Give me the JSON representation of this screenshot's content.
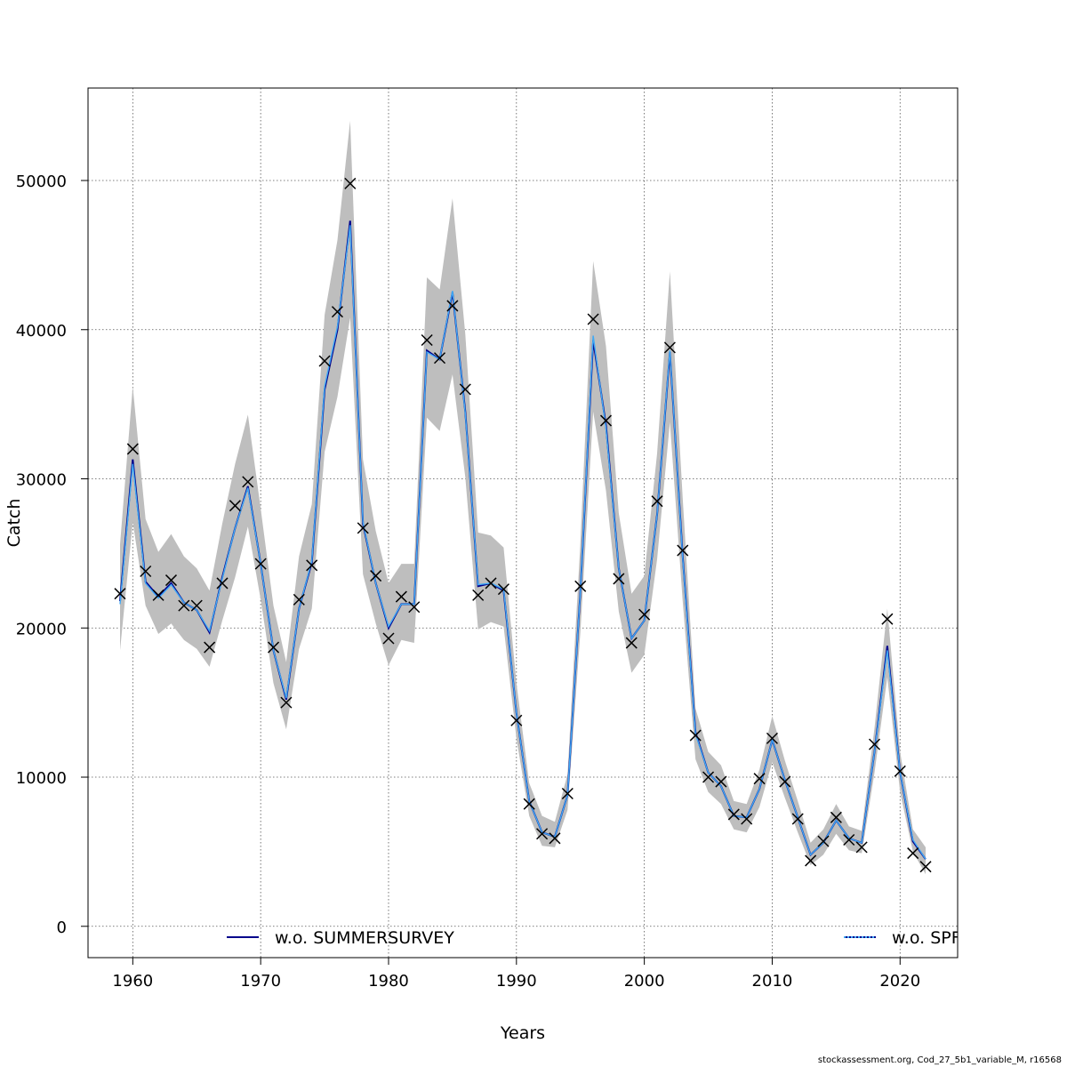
{
  "chart_data": {
    "type": "line",
    "xlabel": "Years",
    "ylabel": "Catch",
    "xlim": [
      1956.5,
      2024.5
    ],
    "ylim": [
      -2100,
      56200
    ],
    "x_ticks": [
      1960,
      1970,
      1980,
      1990,
      2000,
      2010,
      2020
    ],
    "y_ticks": [
      0,
      10000,
      20000,
      30000,
      40000,
      50000
    ],
    "x_tick_labels": [
      "1960",
      "1970",
      "1980",
      "1990",
      "2000",
      "2010",
      "2020"
    ],
    "y_tick_labels": [
      "0",
      "10000",
      "20000",
      "30000",
      "40000",
      "50000"
    ],
    "grid": true,
    "x": [
      1959,
      1960,
      1961,
      1962,
      1963,
      1964,
      1965,
      1966,
      1967,
      1968,
      1969,
      1970,
      1971,
      1972,
      1973,
      1974,
      1975,
      1976,
      1977,
      1978,
      1979,
      1980,
      1981,
      1982,
      1983,
      1984,
      1985,
      1986,
      1987,
      1988,
      1989,
      1990,
      1991,
      1992,
      1993,
      1994,
      1995,
      1996,
      1997,
      1998,
      1999,
      2000,
      2001,
      2002,
      2003,
      2004,
      2005,
      2006,
      2007,
      2008,
      2009,
      2010,
      2011,
      2012,
      2013,
      2014,
      2015,
      2016,
      2017,
      2018,
      2019,
      2020,
      2021,
      2022
    ],
    "series": [
      {
        "name": "w.o. SUMMERSURVEY",
        "color": "#00008b",
        "values": [
          21800,
          31300,
          23100,
          22100,
          23000,
          21700,
          21200,
          19700,
          23400,
          26700,
          29500,
          24300,
          18500,
          15200,
          21300,
          24400,
          36000,
          40000,
          47300,
          27000,
          23000,
          20000,
          21600,
          21600,
          38600,
          38000,
          42500,
          34500,
          22800,
          23000,
          22500,
          14300,
          8400,
          6300,
          6000,
          8800,
          22400,
          39300,
          33600,
          24000,
          19300,
          20500,
          27600,
          38500,
          24800,
          13000,
          10300,
          9400,
          7400,
          7300,
          9200,
          12500,
          9800,
          7300,
          4800,
          5600,
          7100,
          5900,
          5600,
          11700,
          18800,
          10300,
          5700,
          4500
        ],
        "upper": [
          25600,
          36200,
          27300,
          25100,
          26300,
          24800,
          24000,
          22500,
          27000,
          31000,
          34300,
          28000,
          21500,
          17700,
          24800,
          28300,
          41000,
          46000,
          54000,
          31300,
          26500,
          23000,
          24300,
          24300,
          43500,
          42700,
          48800,
          39700,
          26400,
          26200,
          25400,
          16300,
          9600,
          7400,
          7000,
          10200,
          25700,
          44600,
          38900,
          27700,
          22300,
          23500,
          31700,
          43900,
          28700,
          14600,
          11700,
          10800,
          8400,
          8200,
          10500,
          14100,
          11100,
          8400,
          5600,
          6500,
          8200,
          6700,
          6400,
          13300,
          21300,
          11700,
          6500,
          5300
        ],
        "lower": [
          18500,
          27100,
          21500,
          19600,
          20300,
          19200,
          18600,
          17400,
          20500,
          23400,
          26800,
          21900,
          16300,
          13200,
          18600,
          21300,
          31800,
          35500,
          40800,
          23600,
          20300,
          17500,
          19200,
          19000,
          34100,
          33200,
          37000,
          30100,
          19900,
          20400,
          20100,
          12600,
          7400,
          5400,
          5300,
          7800,
          19700,
          34500,
          29200,
          21100,
          17000,
          18200,
          24600,
          33800,
          21800,
          11200,
          9000,
          8200,
          6500,
          6300,
          8000,
          11000,
          8600,
          6300,
          4100,
          4800,
          6200,
          5100,
          4900,
          10300,
          16700,
          9000,
          5000,
          3500
        ]
      },
      {
        "name": "w.o. SPF",
        "color": "#3fa9f5",
        "values": [
          21600,
          31000,
          23000,
          22000,
          22900,
          21700,
          21200,
          19800,
          23300,
          26700,
          29400,
          24300,
          18500,
          15300,
          21300,
          24500,
          36200,
          40200,
          47000,
          27100,
          23000,
          20100,
          21600,
          21600,
          38500,
          38000,
          42600,
          34400,
          22900,
          23000,
          22600,
          14300,
          8400,
          6300,
          6000,
          8800,
          22400,
          39600,
          33400,
          24000,
          19300,
          20500,
          27600,
          38600,
          24700,
          12900,
          10300,
          9400,
          7400,
          7300,
          9200,
          12500,
          9800,
          7300,
          4800,
          5600,
          7100,
          5900,
          5600,
          11700,
          18500,
          10300,
          5800,
          4500
        ]
      }
    ],
    "observed": {
      "marker": "x",
      "values": [
        22300,
        32000,
        23800,
        22200,
        23200,
        21500,
        21500,
        18700,
        23000,
        28200,
        29800,
        24300,
        18700,
        15000,
        21900,
        24200,
        37900,
        41200,
        49800,
        26700,
        23500,
        19300,
        22100,
        21400,
        39300,
        38100,
        41600,
        36000,
        22200,
        23000,
        22600,
        13800,
        8200,
        6200,
        5900,
        8900,
        22800,
        40700,
        33900,
        23300,
        19000,
        20900,
        28500,
        38800,
        25200,
        12800,
        10000,
        9700,
        7500,
        7200,
        9900,
        12600,
        9700,
        7200,
        4400,
        5700,
        7300,
        5800,
        5300,
        12200,
        20600,
        10400,
        4900,
        4000
      ]
    },
    "legend": [
      {
        "label": "w.o. SUMMERSURVEY",
        "color": "#00008b",
        "style": "solid"
      },
      {
        "label": "w.o. SPF",
        "color": "#3fa9f5",
        "style": "dotted"
      }
    ],
    "legend_position": "bottom",
    "band_color": "#bebebe"
  },
  "footer": {
    "credit": "stockassessment.org, Cod_27_5b1_variable_M, r16568"
  }
}
